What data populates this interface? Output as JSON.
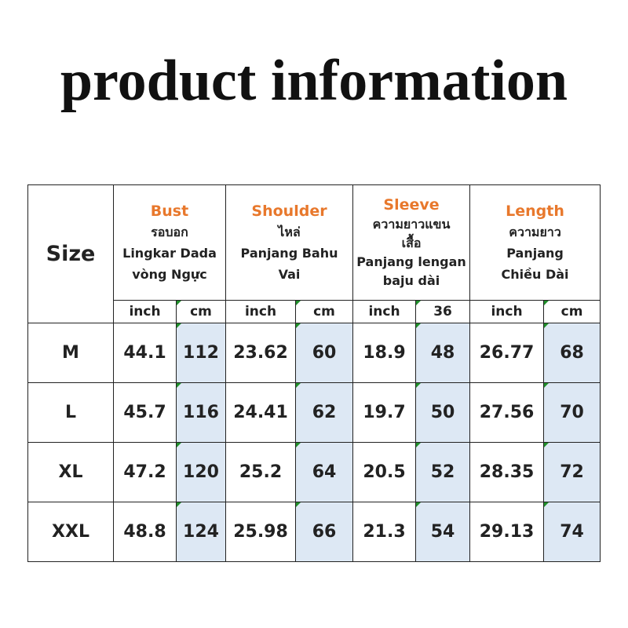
{
  "title": "product information",
  "table": {
    "size_header": "Size",
    "groups": [
      {
        "name": "Bust",
        "lines": [
          "รอบอก",
          "Lingkar Dada",
          "vòng Ngực"
        ]
      },
      {
        "name": "Shoulder",
        "lines": [
          "ไหล่",
          "Panjang Bahu",
          "Vai"
        ]
      },
      {
        "name": "Sleeve",
        "lines": [
          "ความยาวแขน",
          "เสื้อ",
          "Panjang lengan",
          "baju dài"
        ]
      },
      {
        "name": "Length",
        "lines": [
          "ความยาว",
          "Panjang",
          "Chiều Dài"
        ]
      }
    ],
    "units": [
      "inch",
      "cm",
      "inch",
      "cm",
      "inch",
      "36",
      "inch",
      "cm"
    ],
    "rows": [
      [
        "M",
        "44.1",
        "112",
        "23.62",
        "60",
        "18.9",
        "48",
        "26.77",
        "68"
      ],
      [
        "L",
        "45.7",
        "116",
        "24.41",
        "62",
        "19.7",
        "50",
        "27.56",
        "70"
      ],
      [
        "XL",
        "47.2",
        "120",
        "25.2",
        "64",
        "20.5",
        "52",
        "28.35",
        "72"
      ],
      [
        "XXL",
        "48.8",
        "124",
        "25.98",
        "66",
        "21.3",
        "54",
        "29.13",
        "74"
      ]
    ]
  }
}
